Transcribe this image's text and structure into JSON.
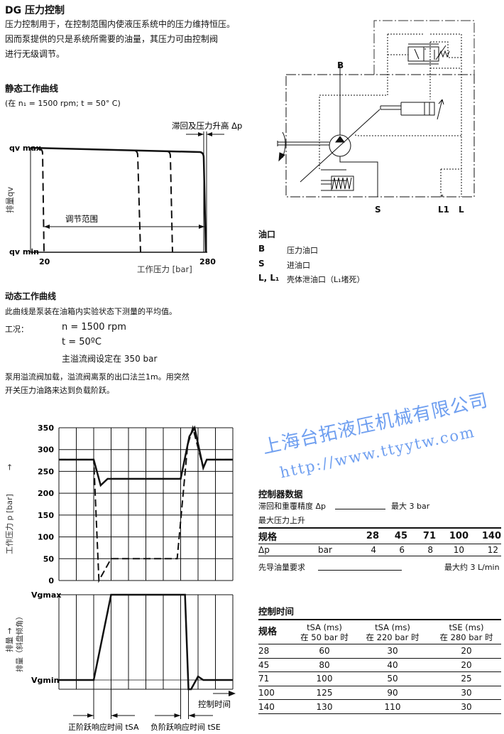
{
  "title": "DG 压力控制",
  "intro": [
    "压力控制用于，在控制范围内使液压系统中的压力维持恒压。",
    "因而泵提供的只是系统所需要的油量，其压力可由控制阀",
    "进行无级调节。"
  ],
  "static_section": {
    "heading": "静态工作曲线",
    "condition": "(在 n₁ = 1500 rpm; t = 50° C)"
  },
  "diagram": {
    "ports": {
      "B": "B",
      "S": "S",
      "L1": "L1",
      "L": "L",
      "L1_mark": "*"
    }
  },
  "ports_legend": {
    "heading": "油口",
    "items": [
      {
        "code": "B",
        "desc": "压力油口"
      },
      {
        "code": "S",
        "desc": "进油口"
      },
      {
        "code": "L, L₁",
        "desc": "壳体泄油口（L₁堵死）"
      }
    ]
  },
  "dynamic_section": {
    "heading": "动态工作曲线",
    "desc": "此曲线是泵装在油箱内实验状态下测量的平均值。",
    "cond_label": "工况：",
    "cond_n": "n = 1500 rpm",
    "cond_t": "t = 50ºC",
    "cond_valve": "主溢流阀设定在 350 bar",
    "note": [
      "泵用溢流阀加载，溢流阀离泵的出口法兰1m。用突然",
      "开关压力油路来达到负载阶跃。"
    ]
  },
  "controller": {
    "heading": "控制器数据",
    "hysteresis_label": "滞回和重覆精度 Δp",
    "hysteresis_value": "最大 3 bar",
    "max_rise_label": "最大压力上升",
    "table": {
      "headers": [
        "规格",
        "",
        "28",
        "45",
        "71",
        "100",
        "140"
      ],
      "row": [
        "Δp",
        "bar",
        "4",
        "6",
        "8",
        "10",
        "12"
      ]
    },
    "pilot_label": "先导油量要求",
    "pilot_value": "最大约 3 L/min"
  },
  "control_time": {
    "heading": "控制时间",
    "headers": [
      {
        "l1": "规格",
        "l2": ""
      },
      {
        "l1": "tSA (ms)",
        "l2": "在 50 bar 时"
      },
      {
        "l1": "tSA (ms)",
        "l2": "在 220 bar 时"
      },
      {
        "l1": "tSE (ms)",
        "l2": "在 280 bar 时"
      }
    ],
    "rows": [
      [
        "28",
        "60",
        "30",
        "20"
      ],
      [
        "45",
        "80",
        "40",
        "20"
      ],
      [
        "71",
        "100",
        "50",
        "25"
      ],
      [
        "100",
        "125",
        "90",
        "30"
      ],
      [
        "140",
        "130",
        "110",
        "30"
      ]
    ]
  },
  "watermark": {
    "company": "上海台拓液压机械有限公司",
    "url": "http://www.ttyytw.com"
  },
  "chart_data": [
    {
      "type": "line",
      "title": "",
      "ylabel": "排量qv",
      "xlabel": "工作压力 [bar]",
      "y_ticks": [
        "qv max",
        "qv min"
      ],
      "x_ticks": [
        "20",
        "280"
      ],
      "annotation_range": "调节范围",
      "annotation_hysteresis": "滞回及压力升高 Δp",
      "series": [
        {
          "style": "solid",
          "x": [
            0,
            270,
            280,
            282
          ],
          "y": [
            "max",
            "max-0.04",
            "max-0.1",
            "min"
          ]
        },
        {
          "style": "dashed",
          "setpoint_bar": 20
        },
        {
          "style": "dashed",
          "setpoint_bar": 160
        },
        {
          "style": "dashed",
          "setpoint_bar": 210
        }
      ]
    },
    {
      "type": "line",
      "ylabel": "工作压力 p [bar]",
      "ylim": [
        0,
        350
      ],
      "y_ticks": [
        0,
        50,
        100,
        150,
        200,
        250,
        300,
        350
      ],
      "grid": true,
      "series": [
        {
          "style": "solid",
          "x": [
            0,
            2,
            2.4,
            2.8,
            7,
            7.5,
            7.8,
            8.3,
            8.5,
            10
          ],
          "y": [
            277,
            277,
            218,
            233,
            233,
            330,
            350,
            258,
            277,
            277
          ]
        },
        {
          "style": "dashed",
          "x": [
            0,
            2,
            2.3,
            3,
            6.8,
            7.4,
            7.7,
            8.3,
            8.5,
            10
          ],
          "y": [
            277,
            277,
            0,
            50,
            50,
            310,
            350,
            258,
            277,
            277
          ]
        }
      ]
    },
    {
      "type": "line",
      "ylabel": "排量（斜盘倾角）",
      "xlabel": "控制时间",
      "y_ticks": [
        "Vgmax",
        "Vgmin"
      ],
      "grid": true,
      "annotations": [
        "正阶跃响应时间 tSA",
        "负阶跃响应时间 tSE"
      ],
      "series": [
        {
          "style": "solid",
          "x": [
            0,
            2,
            3,
            7.25,
            7.45,
            7.6,
            8.0,
            8.3,
            10
          ],
          "y": [
            "Vgmin",
            "Vgmin",
            "Vgmax",
            "Vgmax",
            "below",
            "below",
            "Vgmin+",
            "Vgmin",
            "Vgmin"
          ]
        }
      ]
    }
  ]
}
